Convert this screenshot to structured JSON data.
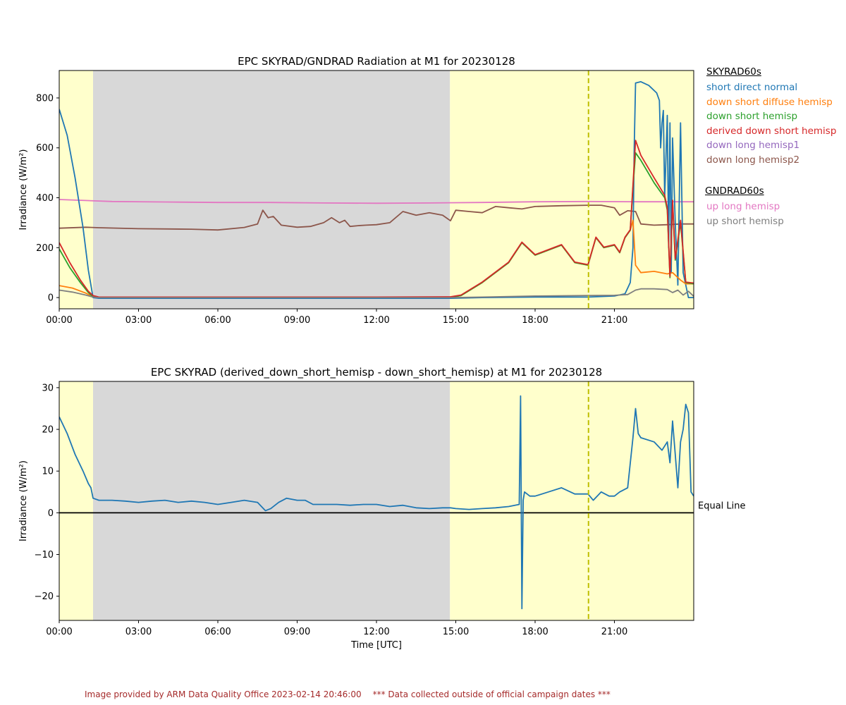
{
  "footer": {
    "credit": "Image provided by ARM Data Quality Office 2023-02-14 20:46:00",
    "notice": "*** Data collected outside of official campaign dates ***"
  },
  "legend_sky": {
    "header": "SKYRAD60s",
    "items": [
      {
        "label": "short direct normal",
        "color": "#1f77b4"
      },
      {
        "label": "down short diffuse hemisp",
        "color": "#ff7f0e"
      },
      {
        "label": "down short hemisp",
        "color": "#2ca02c"
      },
      {
        "label": "derived down short hemisp",
        "color": "#d62728"
      },
      {
        "label": "down long hemisp1",
        "color": "#9467bd"
      },
      {
        "label": "down long hemisp2",
        "color": "#8c564b"
      }
    ]
  },
  "legend_gnd": {
    "header": "GNDRAD60s",
    "items": [
      {
        "label": "up long hemisp",
        "color": "#e377c2"
      },
      {
        "label": "up short hemisp",
        "color": "#7f7f7f"
      }
    ]
  },
  "chart_data": [
    {
      "type": "line",
      "title": "EPC SKYRAD/GNDRAD Radiation at M1 for 20230128",
      "xlabel": "",
      "ylabel": "Irradiance (W/m²)",
      "x_unit": "hours UTC",
      "xlim": [
        0,
        24
      ],
      "ylim": [
        -45,
        910
      ],
      "xticks": [
        0,
        3,
        6,
        9,
        12,
        15,
        18,
        21
      ],
      "xtick_labels": [
        "00:00",
        "03:00",
        "06:00",
        "09:00",
        "12:00",
        "15:00",
        "18:00",
        "21:00"
      ],
      "yticks": [
        0,
        200,
        400,
        600,
        800
      ],
      "shading": [
        {
          "from": 0,
          "to": 1.28,
          "color": "#ffffcc"
        },
        {
          "from": 1.28,
          "to": 14.78,
          "color": "#d8d8d8"
        },
        {
          "from": 14.78,
          "to": 24,
          "color": "#ffffcc"
        }
      ],
      "vline": {
        "x": 20.02,
        "color": "#bfbf00"
      },
      "series": [
        {
          "name": "up long hemisp",
          "color": "#e377c2",
          "x": [
            0,
            1,
            2,
            4,
            6,
            8,
            10,
            12,
            14,
            16,
            18,
            20,
            22,
            23,
            24
          ],
          "y": [
            393,
            389,
            385,
            383,
            381,
            381,
            379,
            378,
            379,
            381,
            384,
            385,
            384,
            384,
            384
          ]
        },
        {
          "name": "down long hemisp2",
          "color": "#8c564b",
          "x": [
            0,
            1,
            1.5,
            3,
            5,
            6,
            7,
            7.5,
            7.7,
            7.9,
            8.1,
            8.4,
            9,
            9.5,
            10,
            10.3,
            10.6,
            10.8,
            11,
            11.3,
            11.6,
            12,
            12.5,
            13,
            13.5,
            14,
            14.5,
            14.8,
            15,
            15.5,
            16,
            16.5,
            17,
            17.5,
            18,
            19,
            20,
            20.5,
            21,
            21.2,
            21.5,
            21.8,
            22,
            22.5,
            23,
            23.5,
            24
          ],
          "y": [
            278,
            282,
            280,
            276,
            274,
            271,
            281,
            295,
            350,
            320,
            325,
            290,
            282,
            285,
            300,
            320,
            300,
            310,
            285,
            288,
            290,
            292,
            300,
            345,
            330,
            340,
            330,
            308,
            350,
            345,
            340,
            365,
            360,
            355,
            365,
            368,
            370,
            370,
            360,
            330,
            348,
            345,
            295,
            290,
            292,
            295,
            295
          ]
        },
        {
          "name": "short direct normal",
          "color": "#1f77b4",
          "x": [
            0,
            0.3,
            0.6,
            0.9,
            1.1,
            1.28,
            1.5,
            3,
            6,
            9,
            12,
            14.8,
            16,
            18,
            20,
            21,
            21.4,
            21.6,
            21.7,
            21.75,
            21.8,
            22,
            22.3,
            22.6,
            22.7,
            22.75,
            22.8,
            22.85,
            22.9,
            23,
            23.05,
            23.1,
            23.15,
            23.2,
            23.3,
            23.4,
            23.5,
            23.6,
            23.8,
            24
          ],
          "y": [
            755,
            650,
            480,
            280,
            110,
            0,
            -3,
            -3,
            -3,
            -3,
            -3,
            -3,
            0,
            2,
            2,
            6,
            15,
            60,
            200,
            600,
            860,
            865,
            850,
            820,
            790,
            600,
            700,
            750,
            400,
            730,
            200,
            700,
            100,
            640,
            300,
            50,
            700,
            100,
            0,
            0
          ]
        },
        {
          "name": "down short diffuse hemisp",
          "color": "#ff7f0e",
          "x": [
            0,
            0.5,
            1,
            1.28,
            1.5,
            3,
            6,
            9,
            12,
            14.8,
            15.2,
            16,
            17,
            17.5,
            18,
            18.5,
            19,
            19.5,
            20,
            20.3,
            20.6,
            21,
            21.2,
            21.4,
            21.6,
            21.7,
            21.8,
            22,
            22.5,
            23,
            23.2,
            23.5,
            23.7,
            24
          ],
          "y": [
            48,
            38,
            18,
            3,
            1,
            1,
            1,
            1,
            1,
            1,
            8,
            60,
            140,
            220,
            170,
            190,
            210,
            140,
            130,
            240,
            200,
            210,
            180,
            240,
            270,
            310,
            130,
            100,
            105,
            95,
            100,
            70,
            55,
            55
          ]
        },
        {
          "name": "down short hemisp",
          "color": "#2ca02c",
          "x": [
            0,
            0.4,
            0.8,
            1.1,
            1.28,
            1.5,
            3,
            6,
            9,
            12,
            14.8,
            15.2,
            16,
            17,
            17.5,
            18,
            18.5,
            19,
            19.5,
            20,
            20.3,
            20.6,
            21,
            21.2,
            21.4,
            21.6,
            21.7,
            21.8,
            22,
            22.5,
            22.9,
            23,
            23.1,
            23.2,
            23.3,
            23.5,
            23.7,
            24
          ],
          "y": [
            195,
            120,
            60,
            20,
            4,
            1,
            1,
            1,
            1,
            1,
            1,
            8,
            60,
            140,
            220,
            170,
            190,
            210,
            140,
            130,
            240,
            200,
            210,
            180,
            240,
            270,
            440,
            580,
            550,
            460,
            400,
            350,
            80,
            380,
            150,
            300,
            60,
            55
          ]
        },
        {
          "name": "derived down short hemisp",
          "color": "#d62728",
          "x": [
            0,
            0.4,
            0.8,
            1.1,
            1.28,
            1.5,
            3,
            6,
            9,
            12,
            14.8,
            15.2,
            16,
            17,
            17.5,
            18,
            18.5,
            19,
            19.5,
            20,
            20.3,
            20.6,
            21,
            21.2,
            21.4,
            21.6,
            21.7,
            21.8,
            22,
            22.5,
            22.9,
            23,
            23.1,
            23.2,
            23.3,
            23.5,
            23.7,
            24
          ],
          "y": [
            220,
            140,
            70,
            25,
            8,
            2,
            2,
            2,
            2,
            2,
            3,
            10,
            62,
            142,
            222,
            172,
            192,
            212,
            142,
            132,
            242,
            202,
            212,
            182,
            242,
            272,
            450,
            630,
            570,
            480,
            410,
            360,
            85,
            390,
            155,
            310,
            62,
            58
          ]
        },
        {
          "name": "up short hemisp",
          "color": "#7f7f7f",
          "x": [
            0,
            0.5,
            1,
            1.28,
            1.5,
            3,
            6,
            9,
            12,
            14.8,
            16,
            18,
            20,
            21,
            21.5,
            21.8,
            22,
            22.5,
            23,
            23.2,
            23.4,
            23.6,
            23.8,
            24
          ],
          "y": [
            30,
            22,
            10,
            2,
            0,
            0,
            0,
            0,
            0,
            0,
            2,
            6,
            8,
            9,
            12,
            30,
            35,
            35,
            32,
            20,
            30,
            10,
            25,
            5
          ]
        }
      ]
    },
    {
      "type": "line",
      "title": "EPC SKYRAD (derived_down_short_hemisp - down_short_hemisp) at M1 for 20230128",
      "xlabel": "Time [UTC]",
      "ylabel": "Irradiance (W/m²)",
      "x_unit": "hours UTC",
      "xlim": [
        0,
        24
      ],
      "ylim": [
        -25.8,
        31.5
      ],
      "xticks": [
        0,
        3,
        6,
        9,
        12,
        15,
        18,
        21
      ],
      "xtick_labels": [
        "00:00",
        "03:00",
        "06:00",
        "09:00",
        "12:00",
        "15:00",
        "18:00",
        "21:00"
      ],
      "yticks": [
        -20,
        -10,
        0,
        10,
        20,
        30
      ],
      "ytick_labels": [
        "−20",
        "−10",
        "0",
        "10",
        "20",
        "30"
      ],
      "shading": [
        {
          "from": 0,
          "to": 1.28,
          "color": "#ffffcc"
        },
        {
          "from": 1.28,
          "to": 14.78,
          "color": "#d8d8d8"
        },
        {
          "from": 14.78,
          "to": 24,
          "color": "#ffffcc"
        }
      ],
      "vline": {
        "x": 20.02,
        "color": "#bfbf00"
      },
      "equal_line": {
        "y": 0,
        "label": "Equal Line"
      },
      "series": [
        {
          "name": "",
          "color": "#1f77b4",
          "x": [
            0,
            0.3,
            0.6,
            0.9,
            1.1,
            1.2,
            1.28,
            1.5,
            2,
            2.5,
            3,
            3.5,
            4,
            4.5,
            5,
            5.5,
            6,
            6.5,
            7,
            7.5,
            7.8,
            8,
            8.3,
            8.6,
            9,
            9.3,
            9.6,
            10,
            10.5,
            11,
            11.5,
            12,
            12.5,
            13,
            13.5,
            14,
            14.5,
            14.8,
            15,
            15.5,
            16,
            16.5,
            17,
            17.4,
            17.45,
            17.5,
            17.55,
            17.6,
            17.8,
            18,
            18.5,
            19,
            19.5,
            20,
            20.2,
            20.5,
            20.8,
            21,
            21.2,
            21.5,
            21.7,
            21.8,
            21.9,
            22,
            22.5,
            22.8,
            23,
            23.1,
            23.2,
            23.3,
            23.4,
            23.5,
            23.6,
            23.7,
            23.8,
            23.9,
            24
          ],
          "y": [
            23,
            19,
            14,
            10,
            7,
            6,
            3.5,
            3,
            3,
            2.8,
            2.5,
            2.8,
            3,
            2.5,
            2.8,
            2.5,
            2,
            2.5,
            3,
            2.5,
            0.5,
            1,
            2.5,
            3.5,
            3,
            3,
            2,
            2,
            2,
            1.8,
            2,
            2,
            1.5,
            1.8,
            1.2,
            1,
            1.2,
            1.2,
            1,
            0.8,
            1,
            1.2,
            1.5,
            2,
            28,
            -23,
            3,
            5,
            4,
            4,
            5,
            6,
            4.5,
            4.5,
            3,
            5,
            4,
            4,
            5,
            6,
            18,
            25,
            19,
            18,
            17,
            15,
            17,
            12,
            22,
            14,
            6,
            17,
            20,
            26,
            24,
            5,
            4
          ]
        }
      ]
    }
  ]
}
